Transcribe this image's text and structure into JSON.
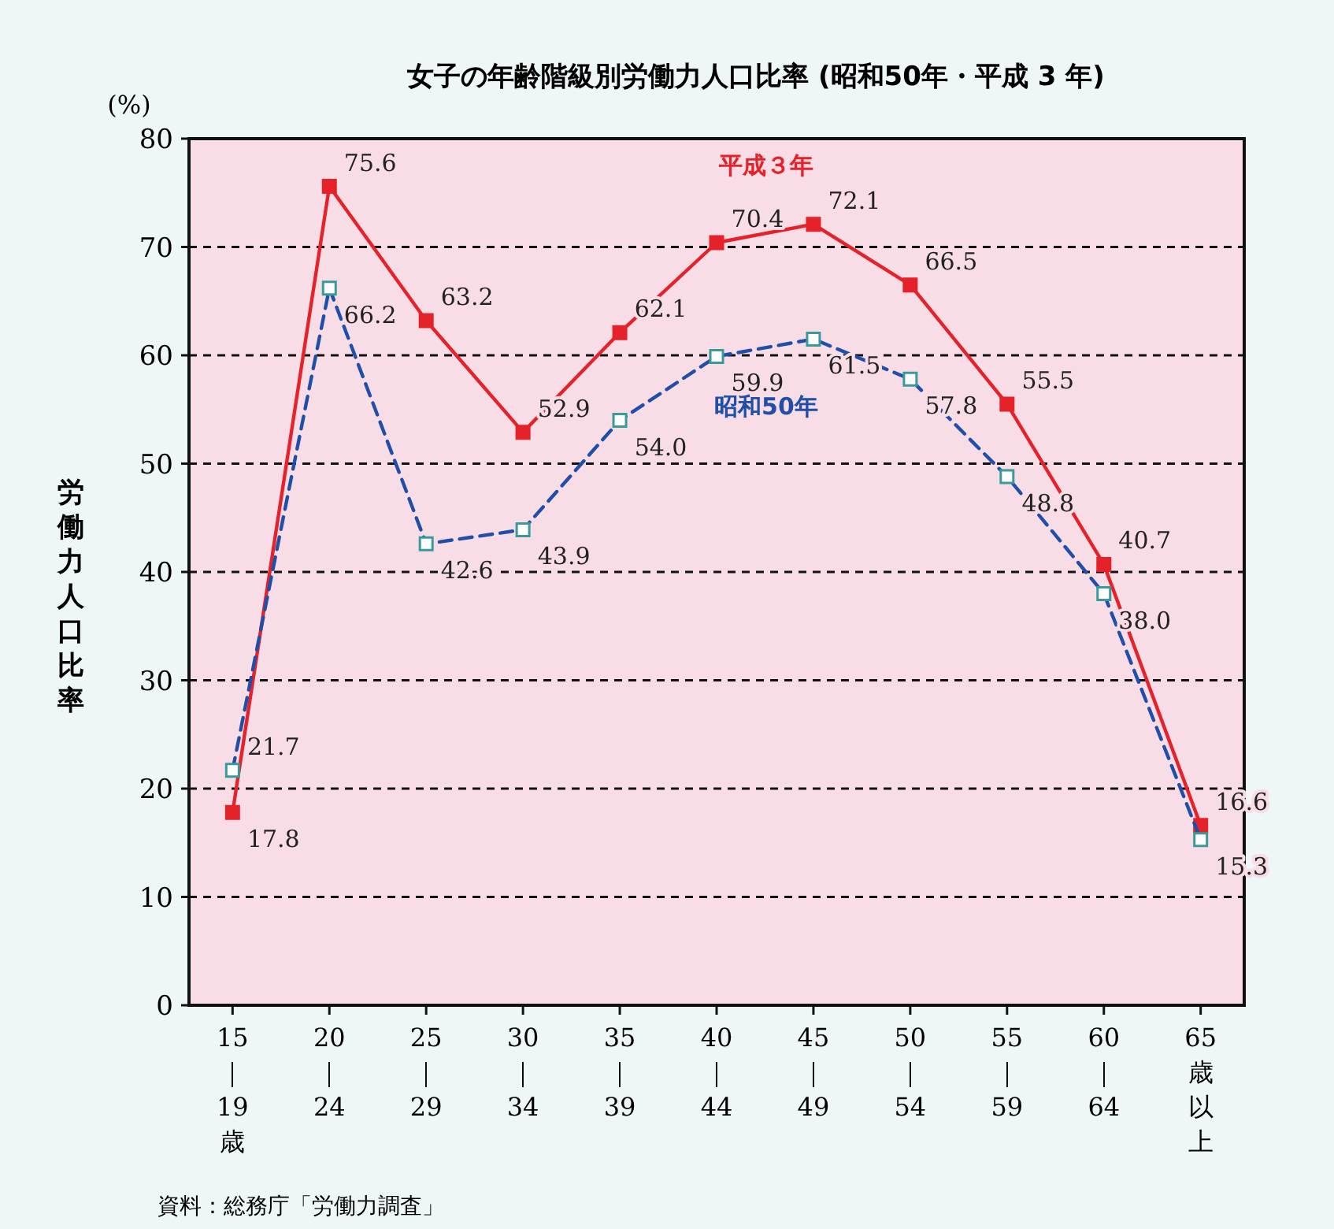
{
  "chart_data": {
    "type": "line",
    "title": "女子の年齢階級別労働力人口比率 (昭和50年・平成 3 年)",
    "ylabel": "労働力人口比率",
    "annotations": [
      "(%)",
      "資料：総務庁「労働力調査」"
    ],
    "categories": [
      "15｜19歳",
      "20｜24",
      "25｜29",
      "30｜34",
      "35｜39",
      "40｜44",
      "45｜49",
      "50｜54",
      "55｜59",
      "60｜64",
      "65歳以上"
    ],
    "series": [
      {
        "name": "平成３年",
        "color": "#e52229",
        "line_style": "solid",
        "values": [
          17.8,
          75.6,
          63.2,
          52.9,
          62.1,
          70.4,
          72.1,
          66.5,
          55.5,
          40.7,
          16.6
        ],
        "value_labels": [
          "17.8",
          "75.6",
          "63.2",
          "52.9",
          "62.1",
          "70.4",
          "72.1",
          "66.5",
          "55.5",
          "40.7",
          "16.6"
        ]
      },
      {
        "name": "昭和50年",
        "color": "#1f4fa8",
        "line_style": "dashed",
        "values": [
          21.7,
          66.2,
          42.6,
          43.9,
          54.0,
          59.9,
          61.5,
          57.8,
          48.8,
          38.0,
          15.3
        ],
        "value_labels": [
          "21.7",
          "66.2",
          "42.6",
          "43.9",
          "54.0",
          "59.9",
          "61.5",
          "57.8",
          "48.8",
          "38.0",
          "15.3"
        ]
      }
    ],
    "ylim": [
      0,
      80
    ],
    "yticks": [
      0,
      10,
      20,
      30,
      40,
      50,
      60,
      70,
      80
    ],
    "grid": "y",
    "legend": false,
    "marker": "square"
  }
}
